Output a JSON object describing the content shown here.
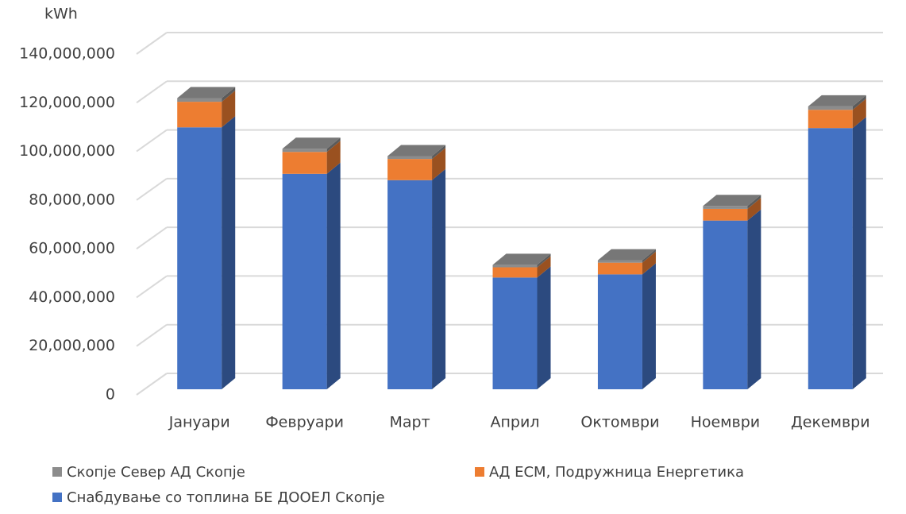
{
  "chart_data": {
    "type": "bar",
    "stacked": true,
    "y_label": "kWh",
    "categories": [
      "Јануари",
      "Февруари",
      "Март",
      "Април",
      "Октомври",
      "Ноември",
      "Декември"
    ],
    "series": [
      {
        "name": "Скопје Север АД Скопје",
        "color": "#8c8c8c",
        "values": [
          1500000,
          1300000,
          1200000,
          1000000,
          1000000,
          1200000,
          1400000
        ]
      },
      {
        "name": "АД ЕСМ, Подружница Енергетика",
        "color": "#ed7d31",
        "values": [
          10500000,
          9000000,
          8700000,
          4200000,
          4800000,
          4800000,
          7500000
        ]
      },
      {
        "name": "Снабдување со топлина БЕ ДООЕЛ Скопје",
        "color": "#4472c4",
        "values": [
          107600000,
          88500000,
          85900000,
          45900000,
          47200000,
          69300000,
          107300000
        ]
      }
    ],
    "ylim": [
      0,
      140000000
    ],
    "yticks": [
      0,
      {
        "value": 20000000,
        "label": "20,000,000"
      },
      {
        "value": 40000000,
        "label": "40,000,000"
      },
      {
        "value": 60000000,
        "label": "60,000,000"
      },
      {
        "value": 80000000,
        "label": "80,000,000"
      },
      {
        "value": 100000000,
        "label": "100,000,000"
      },
      {
        "value": 120000000,
        "label": "120,000,000"
      },
      {
        "value": 140000000,
        "label": "140,000,000"
      }
    ],
    "grid": true
  }
}
